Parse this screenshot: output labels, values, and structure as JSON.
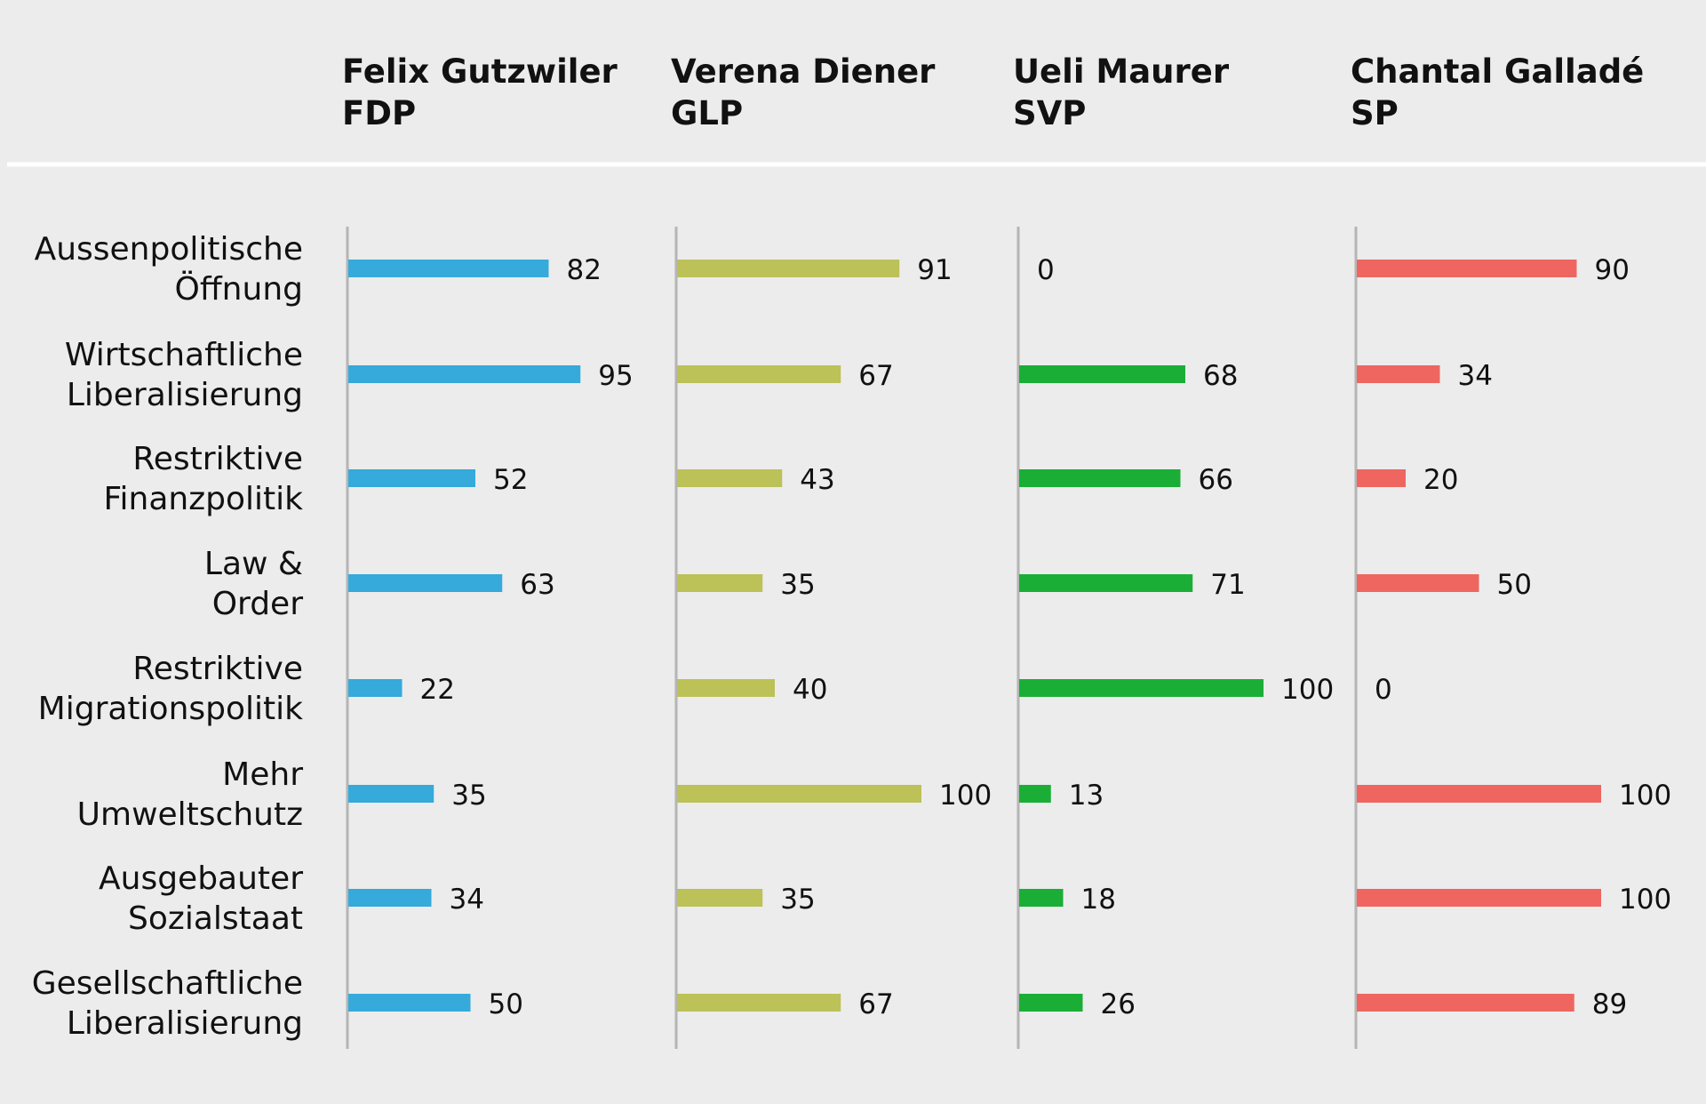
{
  "chart_data": {
    "type": "bar",
    "categories": [
      [
        "Aussenpolitische",
        "Öffnung"
      ],
      [
        "Wirtschaftliche",
        "Liberalisierung"
      ],
      [
        "Restriktive",
        "Finanzpolitik"
      ],
      [
        "Law &",
        "Order"
      ],
      [
        "Restriktive",
        "Migrationspolitik"
      ],
      [
        "Mehr",
        "Umweltschutz"
      ],
      [
        "Ausgebauter",
        "Sozialstaat"
      ],
      [
        "Gesellschaftliche",
        "Liberalisierung"
      ]
    ],
    "series": [
      {
        "name": "Felix Gutzwiler",
        "party": "FDP",
        "color": "#35aadb",
        "values": [
          82,
          95,
          52,
          63,
          22,
          35,
          34,
          50
        ]
      },
      {
        "name": "Verena Diener",
        "party": "GLP",
        "color": "#bcc158",
        "values": [
          91,
          67,
          43,
          35,
          40,
          100,
          35,
          67
        ]
      },
      {
        "name": "Ueli Maurer",
        "party": "SVP",
        "color": "#1aae36",
        "values": [
          0,
          68,
          66,
          71,
          100,
          13,
          18,
          26
        ]
      },
      {
        "name": "Chantal Galladé",
        "party": "SP",
        "color": "#ef6661",
        "values": [
          90,
          34,
          20,
          50,
          0,
          100,
          100,
          89
        ]
      }
    ],
    "xlim": [
      0,
      100
    ]
  }
}
